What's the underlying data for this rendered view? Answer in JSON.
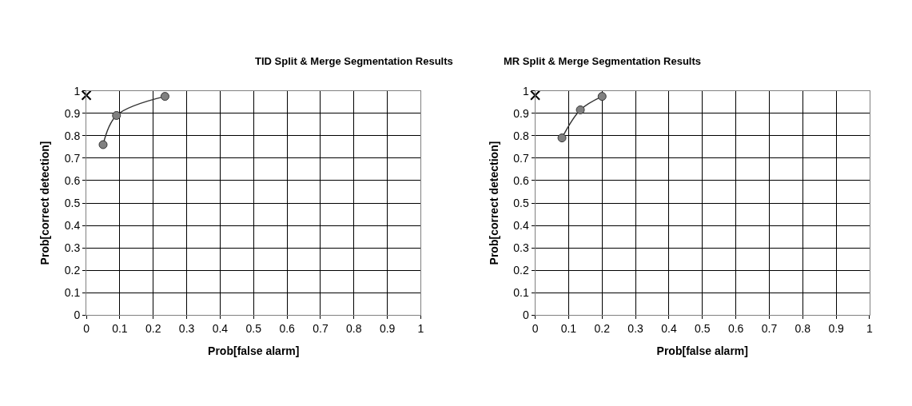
{
  "chart_data": [
    {
      "type": "line",
      "title": "TID Split & Merge Segmentation Results",
      "xlabel": "Prob[false alarm]",
      "ylabel": "Prob[correct detection]",
      "xlim": [
        0,
        1
      ],
      "ylim": [
        0,
        1
      ],
      "xticks": [
        0,
        0.1,
        0.2,
        0.3,
        0.4,
        0.5,
        0.6,
        0.7,
        0.8,
        0.9,
        1
      ],
      "yticks": [
        0,
        0.1,
        0.2,
        0.3,
        0.4,
        0.5,
        0.6,
        0.7,
        0.8,
        0.9,
        1
      ],
      "grid": true,
      "series": [
        {
          "color": "#808080",
          "marker": "circle",
          "x": [
            0.05,
            0.09,
            0.235
          ],
          "values": [
            0.76,
            0.89,
            0.975
          ]
        },
        {
          "type": "scatter",
          "color": "#000000",
          "marker": "cross",
          "x": [
            0
          ],
          "values": [
            0.98
          ]
        }
      ]
    },
    {
      "type": "line",
      "title": "MR Split & Merge Segmentation Results",
      "xlabel": "Prob[false alarm]",
      "ylabel": "Prob[correct detection]",
      "xlim": [
        0,
        1
      ],
      "ylim": [
        0,
        1
      ],
      "xticks": [
        0,
        0.1,
        0.2,
        0.3,
        0.4,
        0.5,
        0.6,
        0.7,
        0.8,
        0.9,
        1
      ],
      "yticks": [
        0,
        0.1,
        0.2,
        0.3,
        0.4,
        0.5,
        0.6,
        0.7,
        0.8,
        0.9,
        1
      ],
      "grid": true,
      "series": [
        {
          "color": "#808080",
          "marker": "circle",
          "x": [
            0.08,
            0.135,
            0.2
          ],
          "values": [
            0.79,
            0.915,
            0.975
          ]
        },
        {
          "type": "scatter",
          "color": "#000000",
          "marker": "cross",
          "x": [
            0
          ],
          "values": [
            0.98
          ]
        }
      ]
    }
  ]
}
